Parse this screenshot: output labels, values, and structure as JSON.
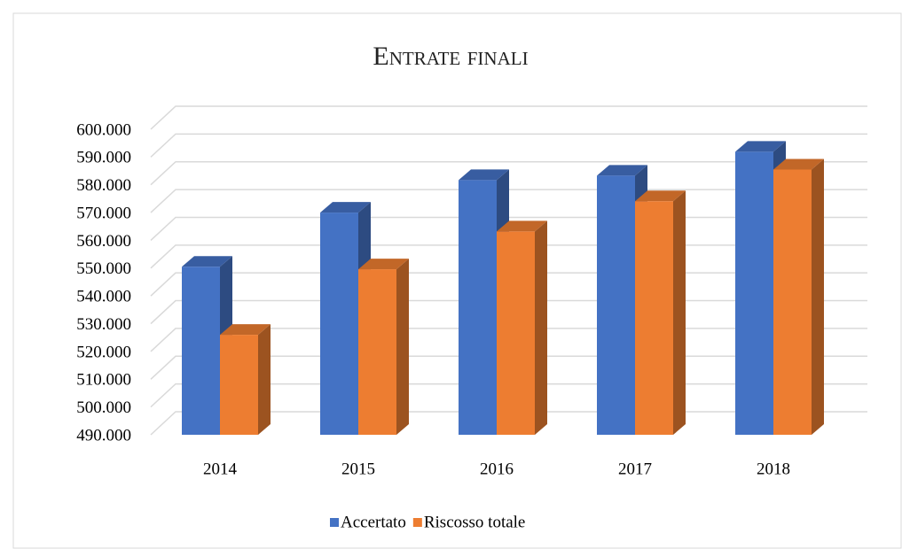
{
  "chart_data": {
    "type": "bar3d",
    "title": "Entrate finali",
    "categories": [
      "2014",
      "2015",
      "2016",
      "2017",
      "2018"
    ],
    "series": [
      {
        "name": "Accertato",
        "color": "#4472c4",
        "values": [
          550500,
          570000,
          581700,
          583300,
          591900
        ]
      },
      {
        "name": "Riscosso totale",
        "color": "#ed7d31",
        "values": [
          526000,
          549600,
          563200,
          574100,
          585500
        ]
      }
    ],
    "ylim": [
      490000,
      600000
    ],
    "yticks": [
      {
        "value": 490000,
        "label": "490.000"
      },
      {
        "value": 500000,
        "label": "500.000"
      },
      {
        "value": 510000,
        "label": "510.000"
      },
      {
        "value": 520000,
        "label": "520.000"
      },
      {
        "value": 530000,
        "label": "530.000"
      },
      {
        "value": 540000,
        "label": "540.000"
      },
      {
        "value": 550000,
        "label": "550.000"
      },
      {
        "value": 560000,
        "label": "560.000"
      },
      {
        "value": 570000,
        "label": "570.000"
      },
      {
        "value": 580000,
        "label": "580.000"
      },
      {
        "value": 590000,
        "label": "590.000"
      },
      {
        "value": 600000,
        "label": "600.000"
      }
    ],
    "grid": true,
    "legend": "bottom"
  }
}
